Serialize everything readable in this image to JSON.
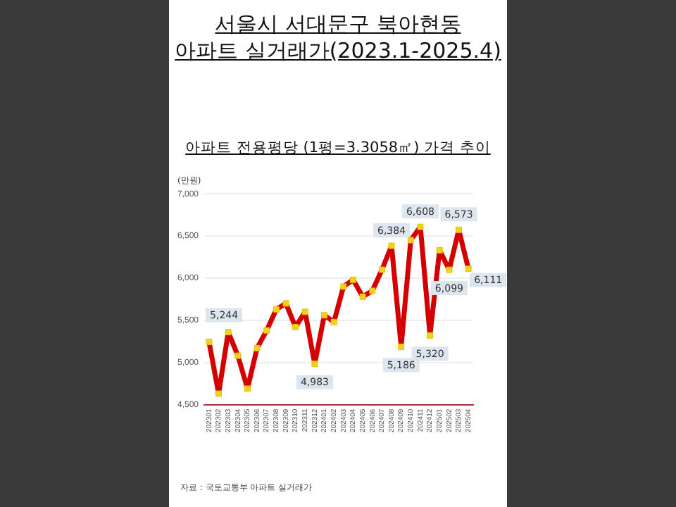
{
  "chart_data": {
    "type": "line",
    "title": "서울시 서대문구 북아현동\n아파트 실거래가(2023.1-2025.4)",
    "subtitle": "아파트 전용평당 (1평=3.3058㎡) 가격 추이",
    "ylabel": "(만원)",
    "categories": [
      "202301",
      "202302",
      "202303",
      "202304",
      "202305",
      "202306",
      "202307",
      "202308",
      "202309",
      "202310",
      "202311",
      "202312",
      "202401",
      "202402",
      "202403",
      "202404",
      "202405",
      "202406",
      "202407",
      "202408",
      "202409",
      "202410",
      "202411",
      "202412",
      "202501",
      "202502",
      "202503",
      "202504"
    ],
    "series": [
      {
        "color": "#d40000",
        "values": [
          5244,
          4630,
          5360,
          5080,
          4690,
          5170,
          5380,
          5630,
          5700,
          5420,
          5600,
          4983,
          5560,
          5480,
          5900,
          5980,
          5780,
          5850,
          6100,
          6384,
          5186,
          6450,
          6608,
          5320,
          6330,
          6099,
          6573,
          6111
        ],
        "value_labels": [
          "5,244",
          null,
          null,
          null,
          null,
          null,
          null,
          null,
          null,
          null,
          null,
          "4,983",
          null,
          null,
          null,
          null,
          null,
          null,
          null,
          "6,384",
          "5,186",
          null,
          "6,608",
          "5,320",
          null,
          "6,099",
          "6,573",
          "6,111"
        ]
      }
    ],
    "ylim": [
      4500,
      7000
    ],
    "yticks": [
      {
        "value": 4500,
        "label": "4,500"
      },
      {
        "value": 5000,
        "label": "5,000"
      },
      {
        "value": 5500,
        "label": "5,500"
      },
      {
        "value": 6000,
        "label": "6,000"
      },
      {
        "value": 6500,
        "label": "6,500"
      },
      {
        "value": 7000,
        "label": "7,000"
      }
    ],
    "grid": "y",
    "legend": false,
    "marker": "square",
    "line_style": "solid",
    "annotations": [
      "자료 : 국토교통부 아파트 실거래가"
    ]
  }
}
